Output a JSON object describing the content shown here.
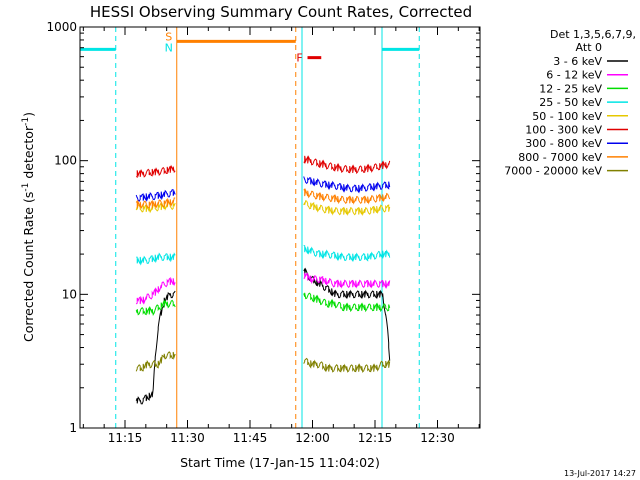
{
  "chart_data": {
    "type": "line",
    "title": "HESSI Observing Summary Count Rates, Corrected",
    "xlabel": "Start Time (17-Jan-15 11:04:02)",
    "ylabel": "Corrected Count Rate (s-1 detector-1)",
    "ylabel_parts": {
      "pre": "Corrected Count Rate (s",
      "sup1": "-1",
      "mid": " detector",
      "sup2": "-1",
      "post": ")"
    },
    "y_scale": "log",
    "ylim": [
      1,
      1000
    ],
    "xlim_minutes": [
      11.07,
      12.67
    ],
    "x_ticks": [
      {
        "t": 11.25,
        "label": "11:15"
      },
      {
        "t": 11.5,
        "label": "11:30"
      },
      {
        "t": 11.75,
        "label": "11:45"
      },
      {
        "t": 12.0,
        "label": "12:00"
      },
      {
        "t": 12.25,
        "label": "12:15"
      },
      {
        "t": 12.5,
        "label": "12:30"
      }
    ],
    "y_ticks": [
      {
        "v": 1,
        "label": "1"
      },
      {
        "v": 10,
        "label": "10"
      },
      {
        "v": 100,
        "label": "100"
      },
      {
        "v": 1000,
        "label": "1000"
      }
    ],
    "legend_header": [
      "Det 1,3,5,6,7,9,",
      "Att 0"
    ],
    "legend_position": "right",
    "footer_date": "13-Jul-2017 14:27",
    "segments": [
      [
        11.295,
        11.453
      ],
      [
        11.965,
        12.312
      ]
    ],
    "series": [
      {
        "name": "3 - 6 keV",
        "color": "#000000",
        "seg1": [
          1.6,
          1.6,
          1.7,
          1.8,
          6,
          9,
          10,
          10
        ],
        "seg2": [
          15,
          13,
          12,
          11,
          10,
          10,
          10,
          10,
          10,
          10,
          10,
          2.5
        ]
      },
      {
        "name": "6 - 12 keV",
        "color": "#ff00ff",
        "seg1": [
          9,
          9,
          9.5,
          10,
          11,
          12,
          12.5,
          12.5
        ],
        "seg2": [
          14,
          13,
          13,
          12.5,
          12,
          12,
          12,
          12,
          12,
          12,
          12,
          12
        ]
      },
      {
        "name": "12 - 25 keV",
        "color": "#00dd00",
        "seg1": [
          7.5,
          7.5,
          7.5,
          7.5,
          8,
          8.5,
          8.5,
          8.5
        ],
        "seg2": [
          10,
          9.5,
          9,
          8.5,
          8.5,
          8,
          8,
          8,
          8,
          8,
          8,
          8
        ]
      },
      {
        "name": "25 - 50 keV",
        "color": "#00e5e5",
        "seg1": [
          18,
          18,
          18,
          18.5,
          19,
          19,
          19,
          19
        ],
        "seg2": [
          22,
          21,
          20,
          20,
          19.5,
          19,
          19,
          19,
          19,
          19.5,
          20,
          20
        ]
      },
      {
        "name": "50 - 100 keV",
        "color": "#e6c800",
        "seg1": [
          44,
          44,
          44,
          44,
          45,
          46,
          46,
          46
        ],
        "seg2": [
          48,
          46,
          44,
          43,
          42,
          42,
          42,
          42,
          42,
          43,
          44,
          44
        ]
      },
      {
        "name": "100 - 300 keV",
        "color": "#e00000",
        "seg1": [
          80,
          80,
          81,
          82,
          83,
          84,
          86,
          88
        ],
        "seg2": [
          103,
          99,
          95,
          92,
          89,
          87,
          86,
          86,
          87,
          89,
          92,
          95
        ]
      },
      {
        "name": "300 - 800 keV",
        "color": "#0000ee",
        "seg1": [
          53,
          53,
          54,
          54,
          55,
          56,
          57,
          58
        ],
        "seg2": [
          73,
          70,
          68,
          66,
          65,
          63,
          62,
          62,
          63,
          64,
          65,
          66
        ]
      },
      {
        "name": "800 - 7000 keV",
        "color": "#ff8000",
        "seg1": [
          47,
          47,
          47,
          47,
          48,
          48,
          49,
          50
        ],
        "seg2": [
          58,
          56,
          54,
          53,
          52,
          51,
          51,
          51,
          51,
          52,
          53,
          54
        ]
      },
      {
        "name": "7000 - 20000 keV",
        "color": "#808000",
        "seg1": [
          2.8,
          2.8,
          3,
          3,
          3,
          3.5,
          3.5,
          3.5
        ],
        "seg2": [
          3.2,
          3,
          3,
          2.8,
          2.8,
          2.8,
          2.8,
          2.8,
          2.8,
          2.8,
          3,
          3
        ]
      }
    ],
    "annotations": {
      "saa_label": "S",
      "night_label": "N",
      "flare_label": "F",
      "night_intervals": [
        [
          11.07,
          11.213
        ],
        [
          12.278,
          12.427
        ]
      ],
      "night_level": 680,
      "saa_interval": [
        11.457,
        11.933
      ],
      "saa_level": 780,
      "flare_interval": [
        11.98,
        12.035
      ],
      "flare_level": 590,
      "cyan_solid_lines": [
        11.07,
        11.958,
        12.278
      ],
      "cyan_dashed_lines": [
        11.213,
        12.427
      ],
      "orange_solid_lines": [
        11.457
      ],
      "orange_dashed_lines": [
        11.933
      ]
    }
  }
}
